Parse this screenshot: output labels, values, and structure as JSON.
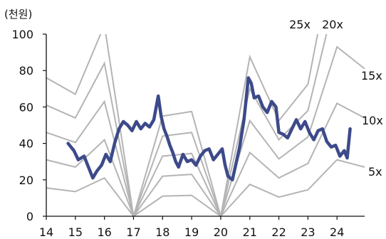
{
  "chart_data": {
    "type": "line",
    "unit_label": "(천원)",
    "xlim": [
      14,
      24.95
    ],
    "ylim": [
      0,
      100
    ],
    "x_ticks": [
      "14",
      "15",
      "16",
      "17",
      "18",
      "19",
      "20",
      "21",
      "22",
      "23",
      "24"
    ],
    "y_ticks": [
      "0",
      "20",
      "40",
      "60",
      "80",
      "100"
    ],
    "band_color": "#b4b4b4",
    "price_color": "#3c4a8a",
    "bands": [
      {
        "name": "5x",
        "x": [
          14,
          15,
          16,
          17,
          18,
          19,
          20,
          21,
          22,
          23,
          24,
          24.95
        ],
        "y": [
          15.5,
          13.5,
          21,
          0,
          11,
          11.5,
          0,
          17.5,
          10.5,
          14.5,
          31,
          27
        ]
      },
      {
        "name": "10x",
        "x": [
          14,
          15,
          16,
          17,
          18,
          19,
          20,
          21,
          22,
          23,
          24,
          24.95
        ],
        "y": [
          31,
          27,
          42,
          0,
          22,
          23,
          0,
          35,
          21,
          29,
          62,
          54
        ]
      },
      {
        "name": "15x",
        "x": [
          14,
          15,
          16,
          17,
          18,
          19,
          20,
          21,
          22,
          23,
          24,
          24.95
        ],
        "y": [
          46,
          40.5,
          63,
          0,
          33,
          34.5,
          0,
          52.5,
          31.5,
          43.5,
          93,
          81
        ]
      },
      {
        "name": "20x",
        "x": [
          14,
          15,
          16,
          17,
          18,
          19,
          20,
          21,
          22,
          23,
          24
        ],
        "y": [
          61,
          54,
          84,
          0,
          44,
          46,
          0,
          70,
          42,
          58,
          124
        ]
      },
      {
        "name": "25x",
        "x": [
          14,
          15,
          16,
          17,
          18,
          19,
          20,
          21,
          22,
          23,
          24
        ],
        "y": [
          76,
          67,
          105,
          0,
          55,
          57.5,
          0,
          87.5,
          52.5,
          72.5,
          155
        ]
      }
    ],
    "price": {
      "x": [
        14.75,
        14.95,
        15.1,
        15.3,
        15.45,
        15.6,
        15.75,
        15.9,
        16.05,
        16.2,
        16.35,
        16.5,
        16.65,
        16.8,
        16.95,
        17.1,
        17.25,
        17.4,
        17.55,
        17.7,
        17.85,
        17.95,
        18.05,
        18.15,
        18.25,
        18.35,
        18.45,
        18.55,
        18.7,
        18.85,
        19.0,
        19.15,
        19.3,
        19.45,
        19.6,
        19.75,
        19.9,
        20.05,
        20.15,
        20.25,
        20.4,
        20.5,
        20.65,
        20.8,
        20.95,
        21.05,
        21.15,
        21.3,
        21.45,
        21.6,
        21.75,
        21.9,
        22.0,
        22.15,
        22.3,
        22.45,
        22.6,
        22.75,
        22.9,
        23.05,
        23.2,
        23.35,
        23.5,
        23.65,
        23.8,
        23.95,
        24.1,
        24.25,
        24.35,
        24.45
      ],
      "y": [
        40,
        36,
        31,
        33,
        27,
        21,
        25,
        28,
        34,
        30,
        40,
        48,
        52,
        50,
        47,
        52,
        48,
        51,
        49,
        53,
        66,
        55,
        48,
        44,
        39,
        35,
        30,
        27,
        34,
        30,
        31,
        28,
        33,
        36,
        37,
        31,
        34,
        37,
        28,
        22,
        20,
        27,
        38,
        53,
        76,
        73,
        65,
        66,
        60,
        57,
        63,
        60,
        46,
        45,
        43,
        48,
        53,
        48,
        52,
        46,
        42,
        47,
        48,
        41,
        38,
        39,
        33,
        36,
        32,
        48
      ]
    },
    "band_labels": [
      {
        "text": "25x",
        "series": "25x"
      },
      {
        "text": "20x",
        "series": "20x"
      },
      {
        "text": "15x",
        "series": "15x"
      },
      {
        "text": "10x",
        "series": "10x"
      },
      {
        "text": "5x",
        "series": "5x"
      }
    ]
  }
}
